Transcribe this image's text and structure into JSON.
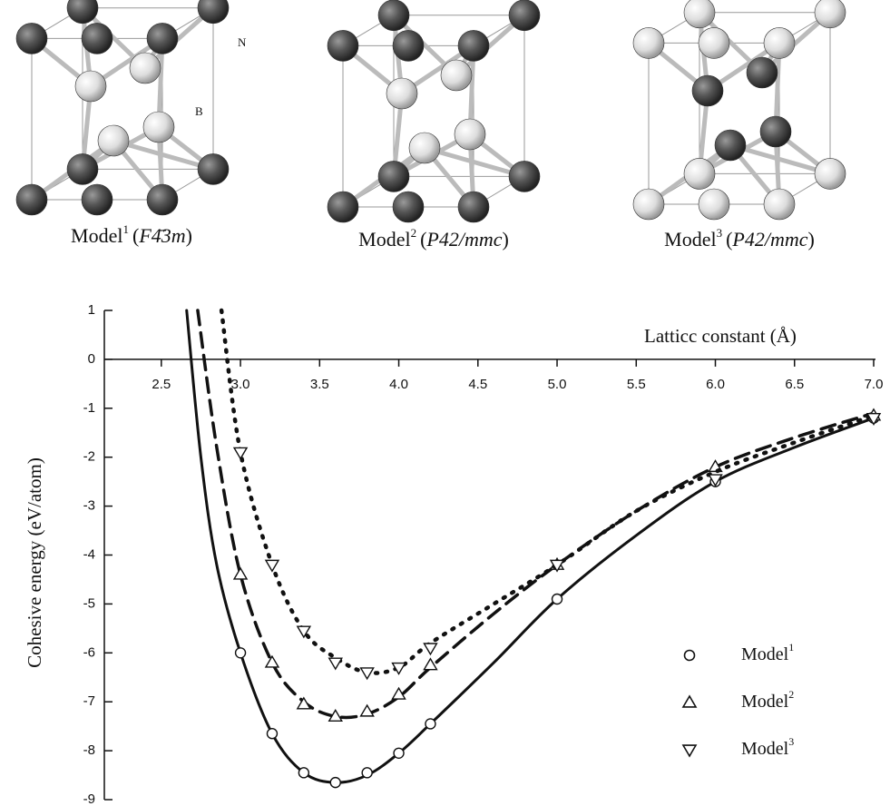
{
  "models": [
    {
      "label": "Model",
      "sup": "1",
      "space_group": "F4̄3m",
      "atom_labels": [
        "N",
        "B"
      ]
    },
    {
      "label": "Model",
      "sup": "2",
      "space_group": "P42/mmc"
    },
    {
      "label": "Model",
      "sup": "3",
      "space_group": "P42/mmc"
    }
  ],
  "chart_data": {
    "type": "line",
    "xlabel": "Latticc  constant (Å)",
    "ylabel": "Cohesive energy (eV/atom)",
    "xlim": [
      2.14,
      7.0
    ],
    "ylim": [
      -9,
      1
    ],
    "xticks": [
      2.5,
      {
        "value": 3,
        "label": "3.0"
      },
      3.5,
      {
        "value": 4,
        "label": "4.0"
      },
      4.5,
      {
        "value": 5,
        "label": "5.0"
      },
      5.5,
      {
        "value": 6,
        "label": "6.0"
      },
      6.5,
      {
        "value": 7,
        "label": "7.0"
      }
    ],
    "yticks": [
      1,
      0,
      -1,
      -2,
      -3,
      -4,
      -5,
      -6,
      -7,
      -8,
      -9
    ],
    "legend": "lower right",
    "series": [
      {
        "name": "Model",
        "sup": "1",
        "color": "#111111",
        "marker": "circle",
        "line_style": "solid",
        "x": [
          3.0,
          3.2,
          3.4,
          3.6,
          3.8,
          4.0,
          4.2,
          5.0,
          6.0,
          7.0
        ],
        "values": [
          -6.0,
          -7.65,
          -8.45,
          -8.65,
          -8.45,
          -8.05,
          -7.45,
          -4.9,
          -2.5,
          -1.2
        ],
        "curve_x": [
          2.66,
          2.75,
          2.85,
          3.0,
          3.2,
          3.4,
          3.6,
          3.8,
          4.0,
          4.2,
          4.6,
          5.0,
          5.5,
          6.0,
          6.5,
          7.0
        ],
        "curve_values": [
          1,
          -2,
          -4.2,
          -6.0,
          -7.65,
          -8.45,
          -8.65,
          -8.5,
          -8.05,
          -7.45,
          -6.2,
          -4.9,
          -3.6,
          -2.5,
          -1.8,
          -1.2
        ]
      },
      {
        "name": "Model",
        "sup": "2",
        "color": "#111111",
        "marker": "triangle-up",
        "line_style": "dashed",
        "x": [
          3.0,
          3.2,
          3.4,
          3.6,
          3.8,
          4.0,
          4.2,
          5.0,
          6.0,
          7.0
        ],
        "values": [
          -4.4,
          -6.2,
          -7.05,
          -7.3,
          -7.2,
          -6.85,
          -6.25,
          -4.2,
          -2.2,
          -1.15
        ],
        "curve_x": [
          2.73,
          2.85,
          3.0,
          3.2,
          3.4,
          3.6,
          3.8,
          4.0,
          4.2,
          4.6,
          5.0,
          5.5,
          6.0,
          6.5,
          7.0
        ],
        "curve_values": [
          1,
          -1.8,
          -4.4,
          -6.2,
          -7.0,
          -7.3,
          -7.25,
          -6.9,
          -6.3,
          -5.2,
          -4.2,
          -3.1,
          -2.2,
          -1.6,
          -1.1
        ]
      },
      {
        "name": "Model",
        "sup": "3",
        "color": "#111111",
        "marker": "triangle-down",
        "line_style": "dotted",
        "x": [
          3.0,
          3.2,
          3.4,
          3.6,
          3.8,
          4.0,
          4.2,
          5.0,
          6.0,
          7.0
        ],
        "values": [
          -1.9,
          -4.2,
          -5.55,
          -6.2,
          -6.4,
          -6.3,
          -5.9,
          -4.2,
          -2.45,
          -1.2
        ],
        "curve_x": [
          2.88,
          3.0,
          3.2,
          3.4,
          3.6,
          3.8,
          4.0,
          4.2,
          4.6,
          5.0,
          5.5,
          6.0,
          6.5,
          7.0
        ],
        "curve_values": [
          1,
          -1.9,
          -4.2,
          -5.55,
          -6.1,
          -6.4,
          -6.3,
          -5.8,
          -5.0,
          -4.2,
          -3.1,
          -2.3,
          -1.7,
          -1.15
        ]
      }
    ]
  }
}
